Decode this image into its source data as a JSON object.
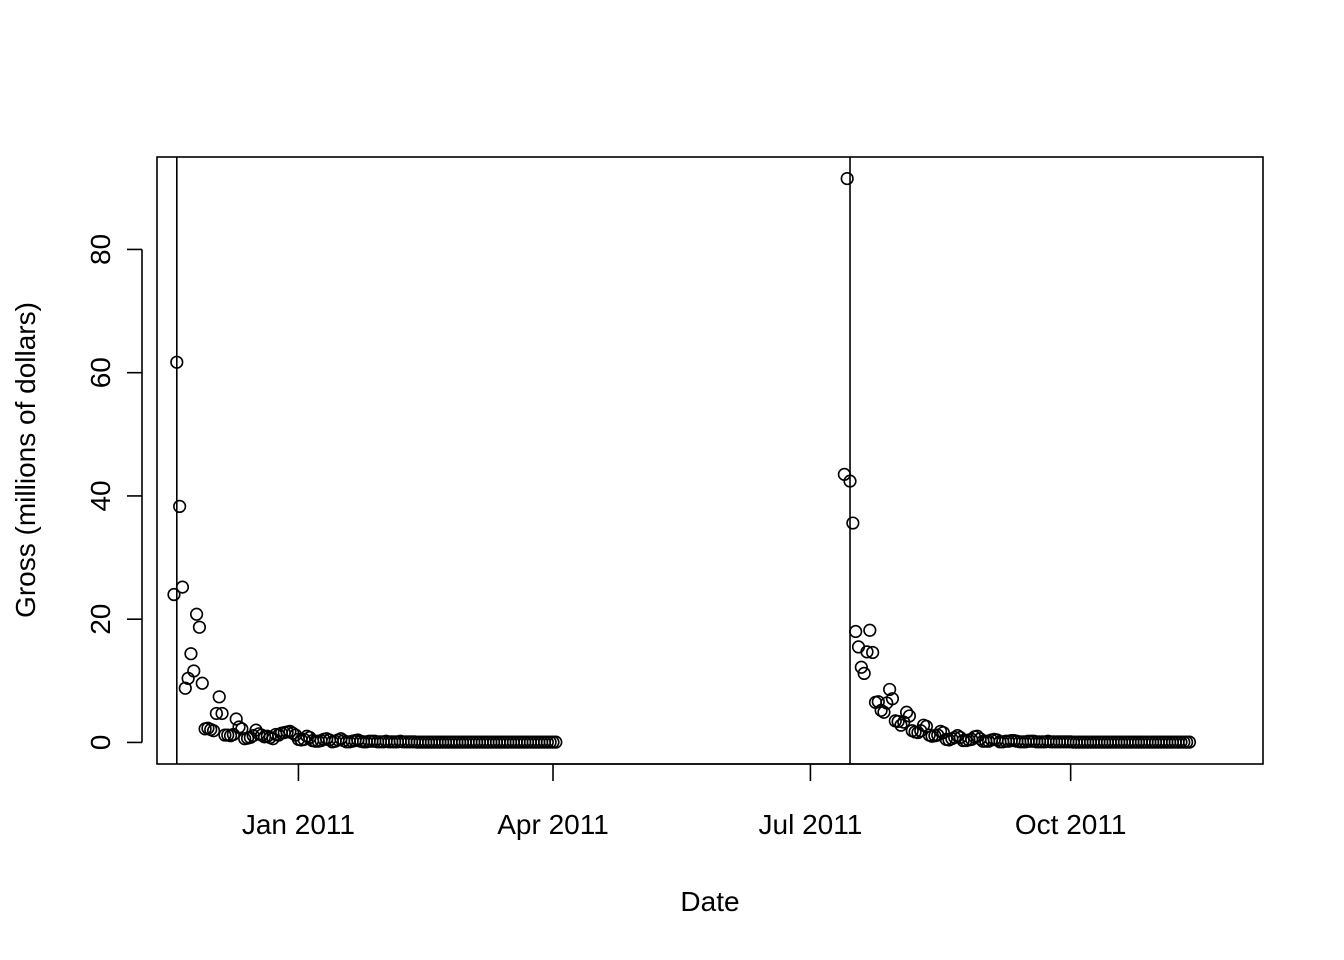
{
  "chart_data": {
    "type": "scatter",
    "xlabel": "Date",
    "ylabel": "Gross (millions of dollars)",
    "xlim": [
      "2010-11-12",
      "2011-12-08"
    ],
    "ylim": [
      -3.5,
      95
    ],
    "y_ticks": [
      0,
      20,
      40,
      60,
      80
    ],
    "x_ticks": [
      {
        "date": "2011-01-01",
        "label": "Jan 2011"
      },
      {
        "date": "2011-04-01",
        "label": "Apr 2011"
      },
      {
        "date": "2011-07-01",
        "label": "Jul 2011"
      },
      {
        "date": "2011-10-01",
        "label": "Oct 2011"
      }
    ],
    "vertical_lines": [
      "2010-11-19",
      "2011-07-15"
    ],
    "grid": false,
    "legend": "none",
    "marker": "open-circle",
    "series": [
      {
        "start_date": "2010-11-18",
        "values": [
          24.0,
          61.7,
          38.3,
          25.2,
          8.8,
          10.4,
          14.4,
          11.6,
          20.8,
          18.7,
          9.6,
          2.2,
          2.3,
          2.1,
          1.9,
          4.7,
          7.4,
          4.7,
          1.2,
          1.2,
          1.1,
          1.3,
          3.8,
          2.5,
          2.2,
          0.6,
          0.7,
          0.8,
          1.1,
          2.0,
          1.4,
          1.2,
          0.9,
          1.0,
          0.8,
          0.6,
          1.3,
          1.2,
          1.5,
          1.6,
          1.7,
          1.8,
          1.5,
          1.2,
          0.5,
          0.4,
          0.5,
          1.0,
          0.8,
          0.3,
          0.2,
          0.2,
          0.3,
          0.5,
          0.6,
          0.4,
          0.1,
          0.2,
          0.4,
          0.6,
          0.3,
          0.1,
          0.1,
          0.2,
          0.3,
          0.4,
          0.2,
          0.1,
          0.1,
          0.2,
          0.2,
          0.2,
          0.1,
          0.1,
          0.1,
          0.2,
          0.1,
          0.1,
          0.1,
          0.1,
          0.2,
          0.1,
          0.1,
          0.1,
          0.1,
          0.1,
          0.05,
          0.05,
          0.05,
          0.05,
          0.05,
          0.05,
          0.05,
          0.05,
          0.05,
          0.05,
          0.05,
          0.05,
          0.05,
          0.05,
          0.05,
          0.05,
          0.05,
          0.05,
          0.05,
          0.05,
          0.05,
          0.05,
          0.05,
          0.05,
          0.05,
          0.05,
          0.05,
          0.05,
          0.05,
          0.05,
          0.05,
          0.05,
          0.05,
          0.05,
          0.05,
          0.05,
          0.05,
          0.05,
          0.05,
          0.05,
          0.05,
          0.05,
          0.05,
          0.05,
          0.05,
          0.05,
          0.05,
          0.05,
          0.05,
          0.05
        ]
      },
      {
        "start_date": "2011-07-13",
        "values": [
          43.5,
          91.5,
          42.4,
          35.6,
          18.0,
          15.5,
          12.2,
          11.2,
          14.7,
          18.2,
          14.6,
          6.5,
          6.6,
          5.2,
          4.9,
          6.4,
          8.6,
          7.1,
          3.5,
          3.4,
          2.8,
          3.3,
          4.9,
          4.3,
          1.9,
          1.7,
          1.6,
          1.9,
          2.8,
          2.6,
          1.2,
          1.0,
          1.1,
          1.2,
          1.8,
          1.6,
          0.5,
          0.4,
          0.6,
          0.8,
          1.1,
          0.8,
          0.3,
          0.3,
          0.4,
          0.5,
          0.9,
          1.0,
          0.6,
          0.2,
          0.2,
          0.2,
          0.4,
          0.5,
          0.4,
          0.1,
          0.1,
          0.2,
          0.2,
          0.3,
          0.3,
          0.2,
          0.1,
          0.1,
          0.1,
          0.2,
          0.2,
          0.2,
          0.1,
          0.1,
          0.1,
          0.1,
          0.2,
          0.1,
          0.1,
          0.1,
          0.1,
          0.1,
          0.1,
          0.1,
          0.1,
          0.05,
          0.05,
          0.05,
          0.05,
          0.05,
          0.05,
          0.05,
          0.05,
          0.05,
          0.05,
          0.05,
          0.05,
          0.05,
          0.05,
          0.05,
          0.05,
          0.05,
          0.05,
          0.05,
          0.05,
          0.05,
          0.05,
          0.05,
          0.05,
          0.05,
          0.05,
          0.05,
          0.05,
          0.05,
          0.05,
          0.05,
          0.05,
          0.05,
          0.05,
          0.05,
          0.05,
          0.05,
          0.05,
          0.05,
          0.05,
          0.05,
          0.05
        ]
      }
    ]
  }
}
